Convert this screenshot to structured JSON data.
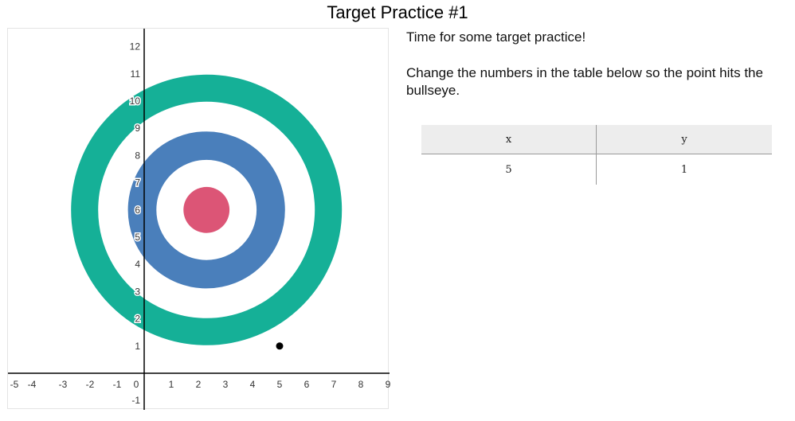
{
  "page": {
    "title": "Target Practice #1"
  },
  "instructions": {
    "line1": "Time for some target practice!",
    "line2": "Change the numbers in the table below so the point hits the bullseye."
  },
  "table": {
    "headers": {
      "x": "x",
      "y": "y"
    },
    "rows": [
      {
        "x": "5",
        "y": "1"
      }
    ]
  },
  "graph": {
    "x_ticks": [
      -5,
      -4,
      -3,
      -2,
      -1,
      0,
      1,
      2,
      3,
      4,
      5,
      6,
      7,
      8,
      9
    ],
    "y_ticks": [
      -1,
      1,
      2,
      3,
      4,
      5,
      6,
      7,
      8,
      9,
      10,
      11,
      12
    ],
    "x_range": [
      -5,
      9
    ],
    "y_range": [
      -1,
      12
    ],
    "target": {
      "center": {
        "x": 2.3,
        "y": 6
      },
      "rings": [
        {
          "name": "outer-ring",
          "outer_radius": 5,
          "inner_radius": 4,
          "color": "#15b097"
        },
        {
          "name": "middle-ring",
          "outer_radius": 2.9,
          "inner_radius": 1.85,
          "color": "#4a7fbb"
        },
        {
          "name": "bullseye",
          "outer_radius": 0.85,
          "inner_radius": 0,
          "color": "#dc5576"
        }
      ]
    },
    "point": {
      "x": 5,
      "y": 1,
      "color": "#000000"
    }
  }
}
